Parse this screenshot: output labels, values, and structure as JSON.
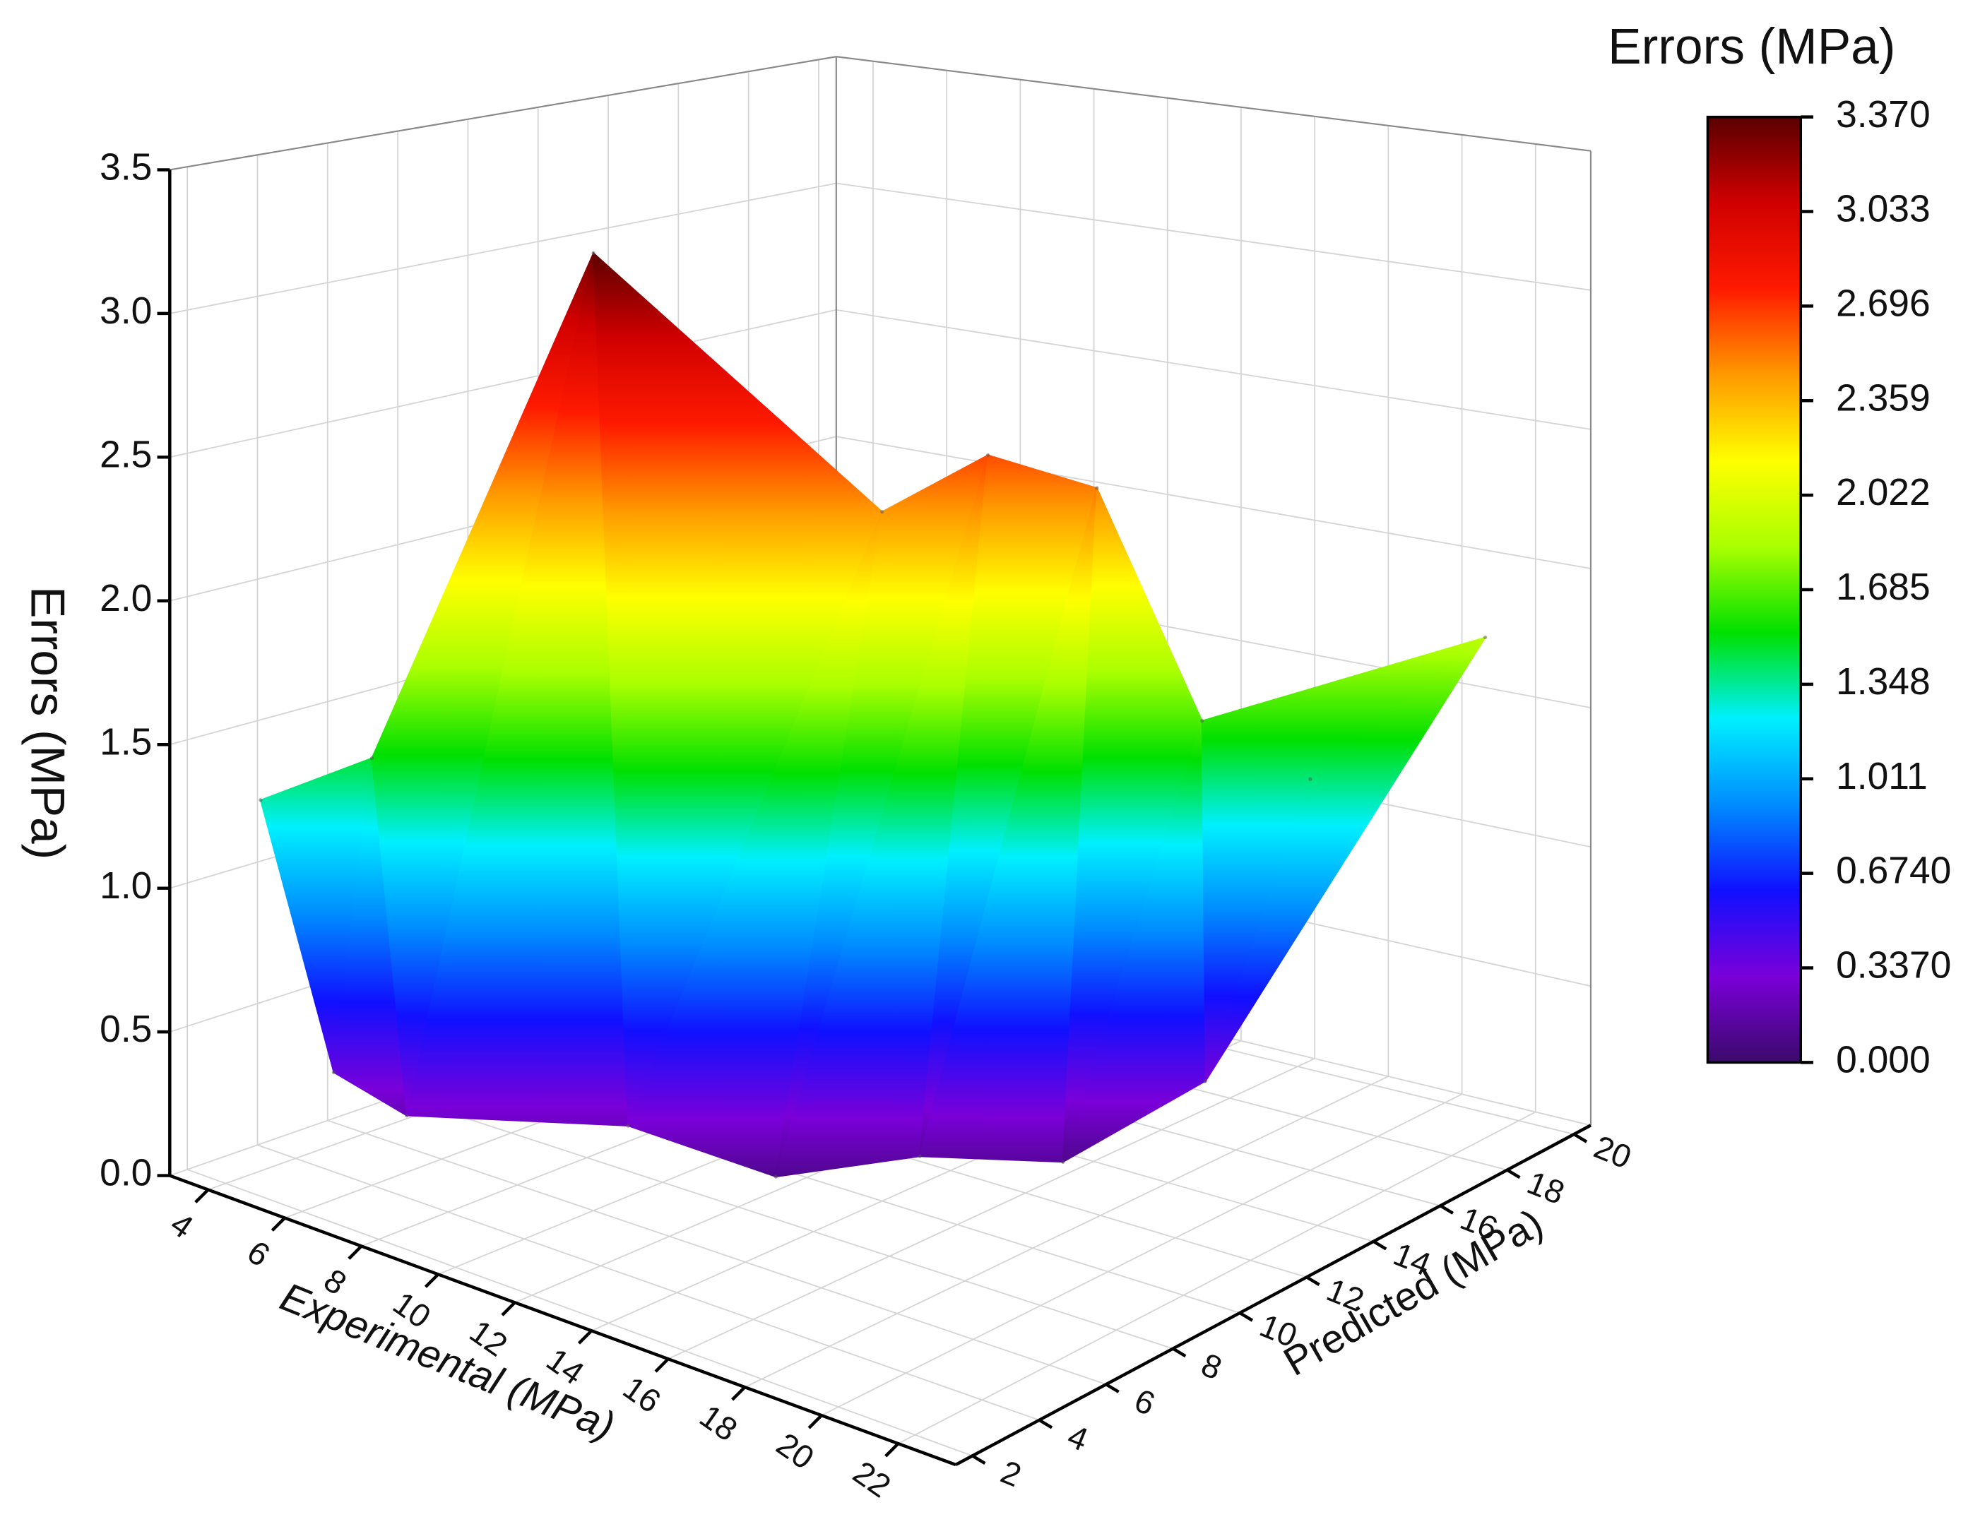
{
  "chart_data": {
    "type": "surface3d",
    "x_label": "Experimental (MPa)",
    "y_label": "Predicted (MPa)",
    "z_label": "Errors (MPa)",
    "colorbar_title": "Errors (MPa)",
    "xlim": [
      3,
      23.5
    ],
    "xticks": [
      4,
      6,
      8,
      10,
      12,
      14,
      16,
      18,
      20,
      22
    ],
    "ylim": [
      1.5,
      20.5
    ],
    "yticks": [
      2,
      4,
      6,
      8,
      10,
      12,
      14,
      16,
      18,
      20
    ],
    "zlim": [
      0,
      3.5
    ],
    "zticks": [
      {
        "value": 0,
        "label": "0.0"
      },
      0.5,
      {
        "value": 1,
        "label": "1.0"
      },
      1.5,
      {
        "value": 2,
        "label": "2.0"
      },
      2.5,
      {
        "value": 3,
        "label": "3.0"
      },
      3.5
    ],
    "clim": [
      0,
      3.37
    ],
    "cticks": [
      {
        "value": 0,
        "label": "0.000"
      },
      {
        "value": 0.337,
        "label": "0.3370"
      },
      {
        "value": 0.674,
        "label": "0.6740"
      },
      1.011,
      1.348,
      1.685,
      2.022,
      2.359,
      2.696,
      3.033,
      {
        "value": 3.37,
        "label": "3.370"
      }
    ],
    "colormap": [
      "#3b0a6b",
      "#7a00d9",
      "#1010ff",
      "#008cff",
      "#00f0ff",
      "#00e000",
      "#aaff00",
      "#ffff00",
      "#ff9900",
      "#ff1a00",
      "#d00000",
      "#5a0000"
    ],
    "surface": {
      "x": [
        4,
        5,
        6,
        6,
        10,
        10,
        14,
        13,
        15,
        15,
        17,
        17,
        18,
        19,
        22,
        20
      ],
      "y": [
        3,
        4,
        4,
        5,
        6,
        7,
        10,
        8,
        12,
        10,
        13,
        12,
        15,
        14,
        19,
        16
      ],
      "z": [
        1.3,
        0.35,
        1.5,
        0.2,
        3.37,
        0.25,
        2.45,
        0.15,
        2.6,
        0.2,
        2.5,
        0.15,
        1.6,
        0.4,
        1.8,
        1.4
      ]
    }
  }
}
